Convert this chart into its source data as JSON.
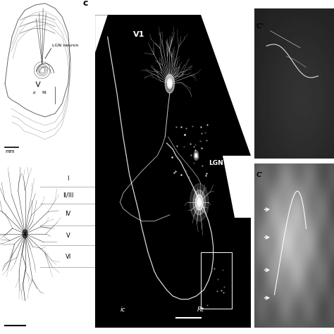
{
  "fig_width": 4.74,
  "fig_height": 4.74,
  "bg_color": "#ffffff",
  "panel_a_label": "LGN neuron",
  "panel_a_sublabel": "ic",
  "panel_a_sublabel2": "Rt",
  "panel_a_scalebar": "mm",
  "panel_b_layers": [
    "I",
    "II/III",
    "IV",
    "V",
    "VI"
  ],
  "panel_c_label": "c",
  "panel_cprime_label": "C'",
  "panel_cdprime_label": "C\""
}
